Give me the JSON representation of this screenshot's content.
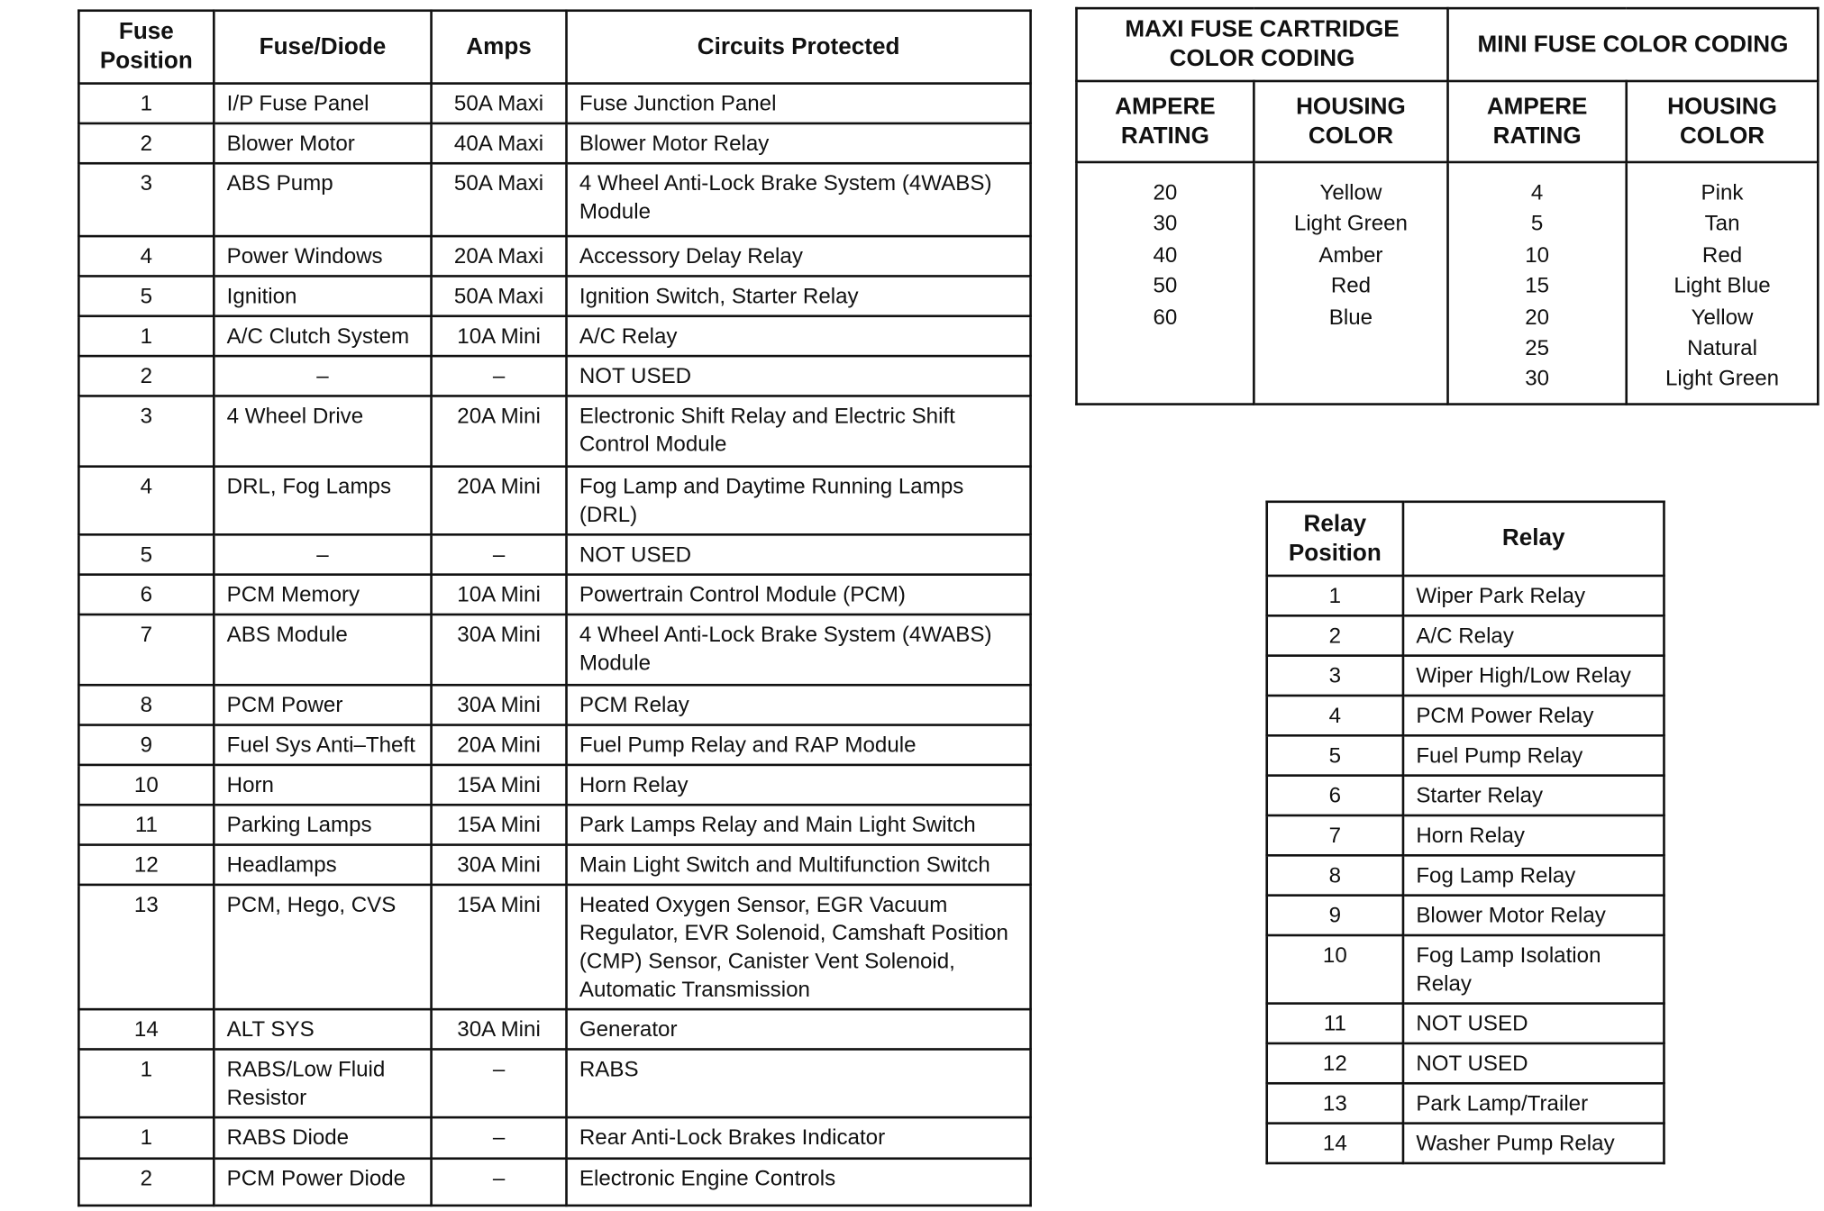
{
  "fuse_table": {
    "headers": [
      "Fuse Position",
      "Fuse/Diode",
      "Amps",
      "Circuits Protected"
    ],
    "rows": [
      [
        "1",
        "I/P Fuse Panel",
        "50A Maxi",
        "Fuse Junction Panel"
      ],
      [
        "2",
        "Blower Motor",
        "40A Maxi",
        "Blower Motor Relay"
      ],
      [
        "3",
        "ABS Pump",
        "50A Maxi",
        "4 Wheel Anti-Lock Brake System  (4WABS) Module"
      ],
      [
        "4",
        "Power Windows",
        "20A Maxi",
        "Accessory Delay Relay"
      ],
      [
        "5",
        "Ignition",
        "50A Maxi",
        "Ignition Switch, Starter Relay"
      ],
      [
        "1",
        "A/C Clutch System",
        "10A Mini",
        "A/C Relay"
      ],
      [
        "2",
        "–",
        "–",
        "NOT USED"
      ],
      [
        "3",
        "4 Wheel Drive",
        "20A Mini",
        "Electronic Shift Relay and Electric Shift Control Module"
      ],
      [
        "4",
        "DRL, Fog Lamps",
        "20A Mini",
        "Fog Lamp and Daytime Running Lamps (DRL)"
      ],
      [
        "5",
        "–",
        "–",
        "NOT USED"
      ],
      [
        "6",
        "PCM Memory",
        "10A Mini",
        "Powertrain Control Module (PCM)"
      ],
      [
        "7",
        "ABS Module",
        "30A Mini",
        "4 Wheel Anti-Lock Brake System (4WABS) Module"
      ],
      [
        "8",
        "PCM Power",
        "30A Mini",
        "PCM Relay"
      ],
      [
        "9",
        "Fuel Sys Anti–Theft",
        "20A Mini",
        "Fuel Pump Relay and RAP Module"
      ],
      [
        "10",
        "Horn",
        "15A Mini",
        "Horn Relay"
      ],
      [
        "11",
        "Parking Lamps",
        "15A Mini",
        "Park Lamps Relay and Main Light Switch"
      ],
      [
        "12",
        "Headlamps",
        "30A Mini",
        "Main Light Switch and Multifunction Switch"
      ],
      [
        "13",
        "PCM, Hego, CVS",
        "15A Mini",
        "Heated Oxygen Sensor, EGR Vacuum Regulator, EVR Solenoid, Camshaft Position (CMP) Sensor, Canister Vent Solenoid, Automatic Transmission"
      ],
      [
        "14",
        "ALT SYS",
        "30A Mini",
        "Generator"
      ],
      [
        "1",
        "RABS/Low Fluid Resistor",
        "–",
        "RABS"
      ],
      [
        "1",
        "RABS Diode",
        "–",
        "Rear Anti-Lock Brakes Indicator"
      ],
      [
        "2",
        "PCM Power Diode",
        "–",
        "Electronic Engine Controls"
      ]
    ]
  },
  "color_coding": {
    "maxi_title": "MAXI FUSE CARTRIDGE COLOR CODING",
    "mini_title": "MINI FUSE COLOR CODING",
    "ampere_label": "AMPERE RATING",
    "housing_label": "HOUSING COLOR",
    "maxi_amps": "20\n30\n40\n50\n60",
    "maxi_colors": "Yellow\nLight Green\nAmber\nRed\nBlue",
    "mini_amps": "4\n5\n10\n15\n20\n25\n30",
    "mini_colors": "Pink\nTan\nRed\nLight Blue\nYellow\nNatural\nLight Green"
  },
  "relay_table": {
    "headers": [
      "Relay Position",
      "Relay"
    ],
    "rows": [
      [
        "1",
        "Wiper Park Relay"
      ],
      [
        "2",
        "A/C Relay"
      ],
      [
        "3",
        "Wiper High/Low Relay"
      ],
      [
        "4",
        "PCM Power Relay"
      ],
      [
        "5",
        "Fuel Pump Relay"
      ],
      [
        "6",
        "Starter Relay"
      ],
      [
        "7",
        "Horn Relay"
      ],
      [
        "8",
        "Fog Lamp Relay"
      ],
      [
        "9",
        "Blower Motor Relay"
      ],
      [
        "10",
        "Fog Lamp Isolation Relay"
      ],
      [
        "11",
        "NOT USED"
      ],
      [
        "12",
        "NOT USED"
      ],
      [
        "13",
        "Park Lamp/Trailer"
      ],
      [
        "14",
        "Washer Pump Relay"
      ]
    ]
  }
}
